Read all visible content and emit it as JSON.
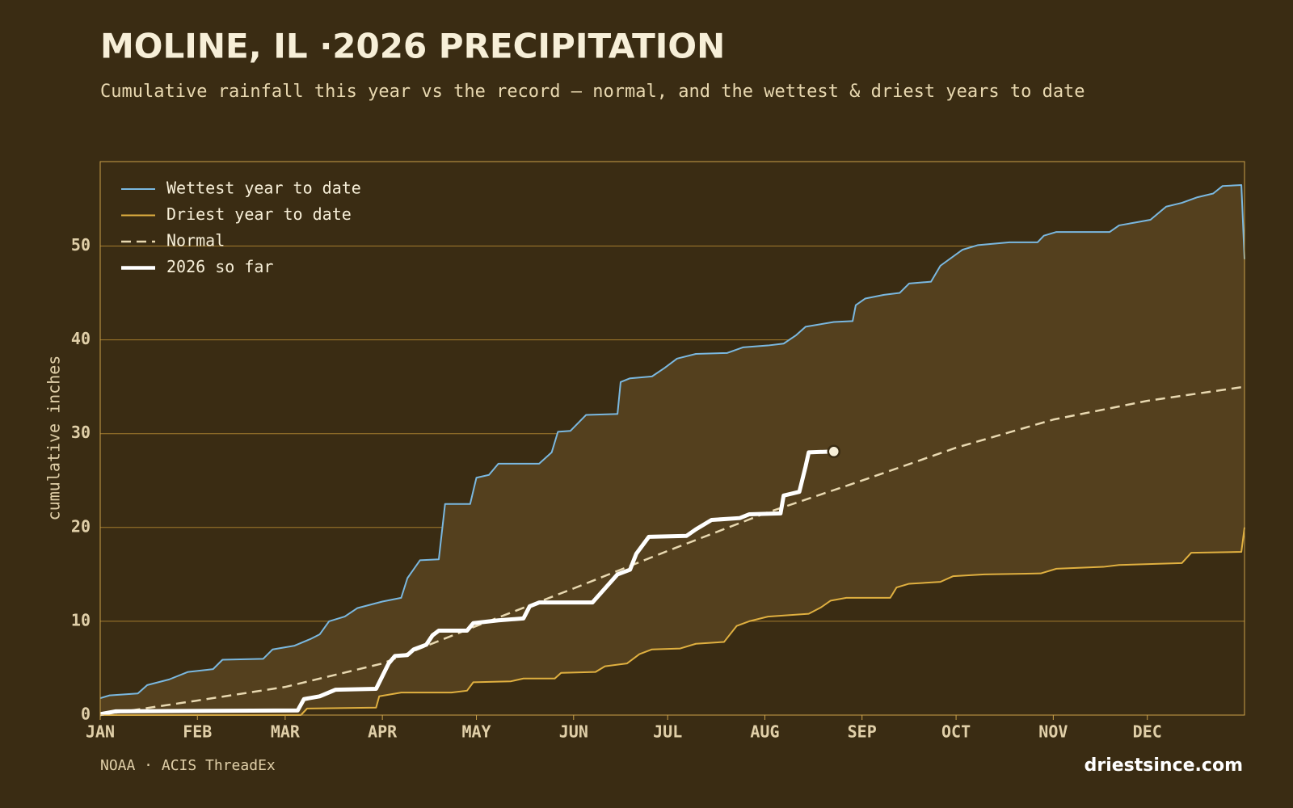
{
  "chart_data": {
    "type": "line",
    "title": "MOLINE, IL ·2026 PRECIPITATION",
    "subtitle": "Cumulative rainfall this year vs the record — normal, and the wettest & driest years to date",
    "ylabel": "cumulative inches",
    "source": "NOAA · ACIS ThreadEx",
    "credit": "driestsince.com",
    "xlim": [
      0,
      365
    ],
    "ylim": [
      0,
      59
    ],
    "xticks": [
      {
        "value": 0,
        "label": "JAN"
      },
      {
        "value": 31,
        "label": "FEB"
      },
      {
        "value": 59,
        "label": "MAR"
      },
      {
        "value": 90,
        "label": "APR"
      },
      {
        "value": 120,
        "label": "MAY"
      },
      {
        "value": 151,
        "label": "JUN"
      },
      {
        "value": 181,
        "label": "JUL"
      },
      {
        "value": 212,
        "label": "AUG"
      },
      {
        "value": 243,
        "label": "SEP"
      },
      {
        "value": 273,
        "label": "OCT"
      },
      {
        "value": 304,
        "label": "NOV"
      },
      {
        "value": 334,
        "label": "DEC"
      }
    ],
    "yticks": [
      0,
      10,
      20,
      30,
      40,
      50
    ],
    "grid": true,
    "legend": "upper left",
    "fill_between": [
      0,
      1
    ],
    "fill_color": "#54401e",
    "series": [
      {
        "name": "Wettest year to date",
        "color": "#7ab8e0",
        "linewidth": 2,
        "linestyle": "solid",
        "x": [
          0,
          3,
          12,
          15,
          22,
          28,
          36,
          39,
          52,
          55,
          62,
          67,
          70,
          73,
          78,
          82,
          90,
          96,
          98,
          102,
          108,
          110,
          118,
          120,
          124,
          127,
          140,
          144,
          146,
          150,
          155,
          165,
          166,
          169,
          176,
          180,
          184,
          190,
          200,
          205,
          213,
          218,
          222,
          225,
          234,
          240,
          241,
          244,
          250,
          255,
          258,
          265,
          268,
          275,
          280,
          290,
          299,
          301,
          305,
          322,
          325,
          330,
          335,
          340,
          345,
          350,
          355,
          358,
          364,
          365
        ],
        "values": [
          1.8,
          2.1,
          2.3,
          3.2,
          3.8,
          4.6,
          4.9,
          5.9,
          6.0,
          7.0,
          7.4,
          8.1,
          8.6,
          10.0,
          10.5,
          11.4,
          12.1,
          12.5,
          14.6,
          16.5,
          16.6,
          22.5,
          22.5,
          25.3,
          25.6,
          26.8,
          26.8,
          28.0,
          30.2,
          30.3,
          32.0,
          32.1,
          35.5,
          35.9,
          36.1,
          37.0,
          38.0,
          38.5,
          38.6,
          39.2,
          39.4,
          39.6,
          40.5,
          41.4,
          41.9,
          42.0,
          43.7,
          44.4,
          44.8,
          45.0,
          46.0,
          46.2,
          47.9,
          49.6,
          50.1,
          50.4,
          50.4,
          51.1,
          51.5,
          51.5,
          52.2,
          52.5,
          52.8,
          54.2,
          54.6,
          55.2,
          55.6,
          56.4,
          56.5,
          48.6
        ]
      },
      {
        "name": "Driest year to date",
        "color": "#e0b040",
        "linewidth": 2,
        "linestyle": "solid",
        "x": [
          0,
          64,
          66,
          88,
          89,
          96,
          112,
          117,
          119,
          131,
          135,
          145,
          147,
          158,
          161,
          168,
          172,
          176,
          185,
          190,
          199,
          203,
          207,
          213,
          226,
          230,
          233,
          238,
          252,
          254,
          258,
          268,
          272,
          282,
          300,
          305,
          320,
          325,
          345,
          348,
          364,
          365
        ],
        "values": [
          0,
          0,
          0.7,
          0.8,
          2.0,
          2.4,
          2.4,
          2.6,
          3.5,
          3.6,
          3.9,
          3.9,
          4.5,
          4.6,
          5.2,
          5.5,
          6.5,
          7.0,
          7.1,
          7.6,
          7.8,
          9.5,
          10.0,
          10.5,
          10.8,
          11.5,
          12.2,
          12.5,
          12.5,
          13.6,
          14.0,
          14.2,
          14.8,
          15.0,
          15.1,
          15.6,
          15.8,
          16.0,
          16.2,
          17.3,
          17.4,
          20.0
        ]
      },
      {
        "name": "Normal",
        "color": "#e8d8b0",
        "linewidth": 2.5,
        "linestyle": "dashed",
        "x": [
          0,
          30,
          59,
          90,
          120,
          151,
          181,
          212,
          243,
          273,
          304,
          334,
          365
        ],
        "values": [
          0,
          1.5,
          3.0,
          5.5,
          9.5,
          13.5,
          17.5,
          21.5,
          25.0,
          28.5,
          31.5,
          33.5,
          35.0
        ]
      },
      {
        "name": "2026 so far",
        "color": "#ffffff",
        "linewidth": 5,
        "linestyle": "solid",
        "end_marker": true,
        "x": [
          0,
          5,
          63,
          65,
          70,
          75,
          88,
          92,
          94,
          98,
          100,
          104,
          106,
          108,
          117,
          119,
          127,
          135,
          137,
          140,
          157,
          161,
          165,
          169,
          171,
          175,
          187,
          190,
          195,
          204,
          207,
          217,
          218,
          223,
          225,
          226,
          234
        ],
        "values": [
          0.1,
          0.4,
          0.5,
          1.7,
          2.0,
          2.7,
          2.8,
          5.5,
          6.3,
          6.4,
          7.0,
          7.5,
          8.5,
          9.0,
          9.0,
          9.8,
          10.1,
          10.3,
          11.6,
          12.0,
          12.0,
          13.5,
          15.0,
          15.5,
          17.2,
          19.0,
          19.1,
          19.8,
          20.8,
          21.0,
          21.4,
          21.5,
          23.4,
          23.8,
          26.5,
          28.0,
          28.1
        ]
      }
    ]
  }
}
